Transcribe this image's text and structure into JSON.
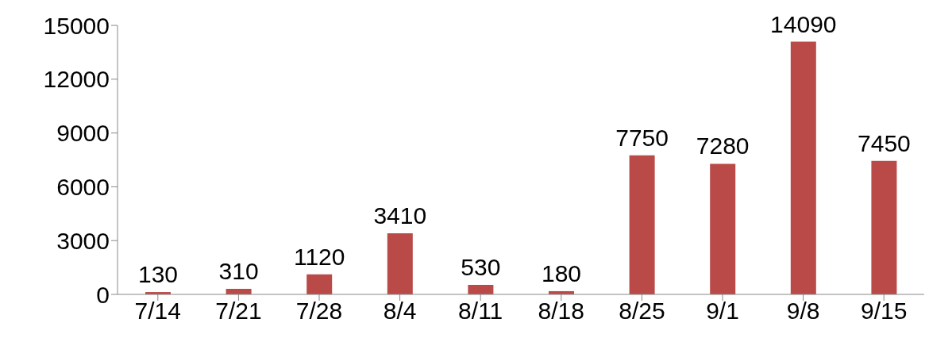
{
  "chart_data": {
    "type": "bar",
    "categories": [
      "7/14",
      "7/21",
      "7/28",
      "8/4",
      "8/11",
      "8/18",
      "8/25",
      "9/1",
      "9/8",
      "9/15"
    ],
    "values": [
      130,
      310,
      1120,
      3410,
      530,
      180,
      7750,
      7280,
      14090,
      7450
    ],
    "color": "#b94a48",
    "ylim": [
      0,
      15000
    ],
    "yticks": [
      0,
      3000,
      6000,
      9000,
      12000,
      15000
    ],
    "data_labels": true,
    "grid": false,
    "legend": false
  }
}
